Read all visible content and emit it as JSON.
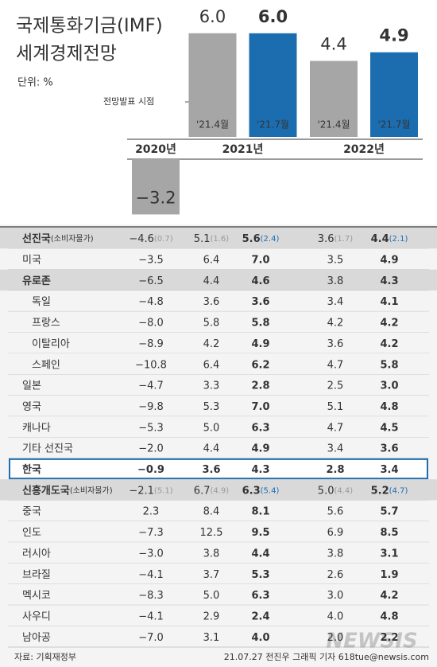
{
  "chart_data": {
    "type": "bar",
    "title": [
      "국제통화기금(IMF)",
      "세계경제전망"
    ],
    "unit_label": "단위: %",
    "annotation": "전망발표 시점",
    "categories": [
      "2020년",
      "2021년",
      "2022년"
    ],
    "series": [
      {
        "name": "'21.4월",
        "color": "#a6a6a6",
        "values": [
          -3.2,
          6.0,
          4.4
        ],
        "value_labels": [
          "−3.2",
          "6.0",
          "4.4"
        ]
      },
      {
        "name": "'21.7월",
        "color": "#1c6db0",
        "values": [
          null,
          6.0,
          4.9
        ],
        "value_labels": [
          null,
          "6.0",
          "4.9"
        ]
      }
    ]
  },
  "table": {
    "rows": [
      {
        "label": "선진국",
        "label_note": "(소비자물가)",
        "cells": [
          "−4.6",
          "5.1",
          "5.6",
          "3.6",
          "4.4"
        ],
        "cell_notes": [
          "(0.7)",
          "(1.6)",
          "(2.4)",
          "(1.7)",
          "(2.1)"
        ]
      },
      {
        "label": "미국",
        "cells": [
          "−3.5",
          "6.4",
          "7.0",
          "3.5",
          "4.9"
        ]
      },
      {
        "label": "유로존",
        "cells": [
          "−6.5",
          "4.4",
          "4.6",
          "3.8",
          "4.3"
        ]
      },
      {
        "label": "독일",
        "cells": [
          "−4.8",
          "3.6",
          "3.6",
          "3.4",
          "4.1"
        ]
      },
      {
        "label": "프랑스",
        "cells": [
          "−8.0",
          "5.8",
          "5.8",
          "4.2",
          "4.2"
        ]
      },
      {
        "label": "이탈리아",
        "cells": [
          "−8.9",
          "4.2",
          "4.9",
          "3.6",
          "4.2"
        ]
      },
      {
        "label": "스페인",
        "cells": [
          "−10.8",
          "6.4",
          "6.2",
          "4.7",
          "5.8"
        ]
      },
      {
        "label": "일본",
        "cells": [
          "−4.7",
          "3.3",
          "2.8",
          "2.5",
          "3.0"
        ]
      },
      {
        "label": "영국",
        "cells": [
          "−9.8",
          "5.3",
          "7.0",
          "5.1",
          "4.8"
        ]
      },
      {
        "label": "캐나다",
        "cells": [
          "−5.3",
          "5.0",
          "6.3",
          "4.7",
          "4.5"
        ]
      },
      {
        "label": "기타 선진국",
        "cells": [
          "−2.0",
          "4.4",
          "4.9",
          "3.4",
          "3.6"
        ]
      },
      {
        "label": "한국",
        "cells": [
          "−0.9",
          "3.6",
          "4.3",
          "2.8",
          "3.4"
        ]
      },
      {
        "label": "신흥개도국",
        "label_note": "(소비자물가)",
        "cells": [
          "−2.1",
          "6.7",
          "6.3",
          "5.0",
          "5.2"
        ],
        "cell_notes": [
          "(5.1)",
          "(4.9)",
          "(5.4)",
          "(4.4)",
          "(4.7)"
        ]
      },
      {
        "label": "중국",
        "cells": [
          "2.3",
          "8.4",
          "8.1",
          "5.6",
          "5.7"
        ]
      },
      {
        "label": "인도",
        "cells": [
          "−7.3",
          "12.5",
          "9.5",
          "6.9",
          "8.5"
        ]
      },
      {
        "label": "러시아",
        "cells": [
          "−3.0",
          "3.8",
          "4.4",
          "3.8",
          "3.1"
        ]
      },
      {
        "label": "브라질",
        "cells": [
          "−4.1",
          "3.7",
          "5.3",
          "2.6",
          "1.9"
        ]
      },
      {
        "label": "멕시코",
        "cells": [
          "−8.3",
          "5.0",
          "6.3",
          "3.0",
          "4.2"
        ]
      },
      {
        "label": "사우디",
        "cells": [
          "−4.1",
          "2.9",
          "2.4",
          "4.0",
          "4.8"
        ]
      },
      {
        "label": "남아공",
        "cells": [
          "−7.0",
          "3.1",
          "4.0",
          "2.0",
          "2.2"
        ]
      }
    ]
  },
  "footer": {
    "source": "자료: 기획재정부",
    "credit": "21.07.27 전진우 그래픽 기자 618tue@newsis.com",
    "watermark": "NEWSIS"
  }
}
